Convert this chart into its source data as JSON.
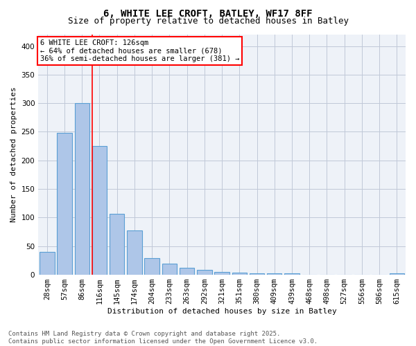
{
  "title_line1": "6, WHITE LEE CROFT, BATLEY, WF17 8FF",
  "title_line2": "Size of property relative to detached houses in Batley",
  "xlabel": "Distribution of detached houses by size in Batley",
  "ylabel": "Number of detached properties",
  "categories": [
    "28sqm",
    "57sqm",
    "86sqm",
    "116sqm",
    "145sqm",
    "174sqm",
    "204sqm",
    "233sqm",
    "263sqm",
    "292sqm",
    "321sqm",
    "351sqm",
    "380sqm",
    "409sqm",
    "439sqm",
    "468sqm",
    "498sqm",
    "527sqm",
    "556sqm",
    "586sqm",
    "615sqm"
  ],
  "values": [
    40,
    248,
    300,
    225,
    107,
    77,
    29,
    19,
    12,
    9,
    5,
    4,
    3,
    2,
    2,
    0,
    0,
    0,
    0,
    0,
    2
  ],
  "bar_color": "#aec6e8",
  "bar_edge_color": "#5a9fd4",
  "vline_idx": 3,
  "vline_color": "red",
  "annotation_text": "6 WHITE LEE CROFT: 126sqm\n← 64% of detached houses are smaller (678)\n36% of semi-detached houses are larger (381) →",
  "annotation_box_color": "white",
  "annotation_box_edge": "red",
  "ylim": [
    0,
    420
  ],
  "yticks": [
    0,
    50,
    100,
    150,
    200,
    250,
    300,
    350,
    400
  ],
  "grid_color": "#c0c8d8",
  "bg_color": "#eef2f8",
  "footer_text": "Contains HM Land Registry data © Crown copyright and database right 2025.\nContains public sector information licensed under the Open Government Licence v3.0.",
  "title_fontsize": 10,
  "subtitle_fontsize": 9,
  "annotation_fontsize": 7.5,
  "ylabel_fontsize": 8,
  "xlabel_fontsize": 8,
  "footer_fontsize": 6.5,
  "tick_fontsize": 7.5
}
